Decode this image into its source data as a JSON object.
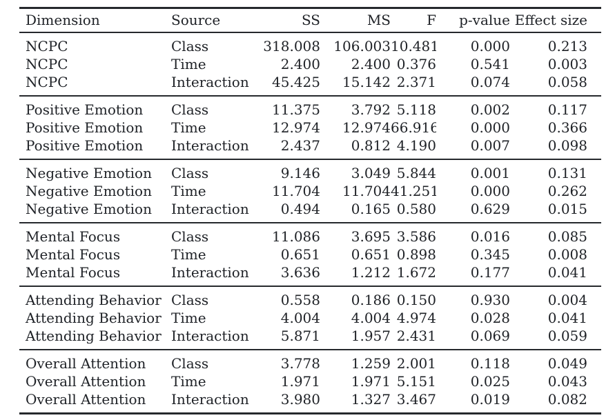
{
  "page": {
    "kind": "paper-table",
    "description": "Repeated-measures ANOVA results table (LaTeX booktabs style)"
  },
  "colors": {
    "background": "#ffffff",
    "text": "#1e2126",
    "rule": "#25282c"
  },
  "table": {
    "columns": [
      {
        "key": "dimension",
        "label": "Dimension",
        "align": "left"
      },
      {
        "key": "source",
        "label": "Source",
        "align": "left"
      },
      {
        "key": "ss",
        "label": "SS",
        "align": "right"
      },
      {
        "key": "ms",
        "label": "MS",
        "align": "right"
      },
      {
        "key": "f",
        "label": "F",
        "align": "right"
      },
      {
        "key": "p_value",
        "label": "p-value",
        "align": "right"
      },
      {
        "key": "effect_size",
        "label": "Effect size",
        "align": "right"
      }
    ],
    "groups": [
      {
        "dimension": "NCPC",
        "rows": [
          [
            "NCPC",
            "Class",
            "318.008",
            "106.003",
            "10.481",
            "0.000",
            "0.213"
          ],
          [
            "NCPC",
            "Time",
            "2.400",
            "2.400",
            "0.376",
            "0.541",
            "0.003"
          ],
          [
            "NCPC",
            "Interaction",
            "45.425",
            "15.142",
            "2.371",
            "0.074",
            "0.058"
          ]
        ]
      },
      {
        "dimension": "Positive Emotion",
        "rows": [
          [
            "Positive Emotion",
            "Class",
            "11.375",
            "3.792",
            "5.118",
            "0.002",
            "0.117"
          ],
          [
            "Positive Emotion",
            "Time",
            "12.974",
            "12.974",
            "66.916",
            "0.000",
            "0.366"
          ],
          [
            "Positive Emotion",
            "Interaction",
            "2.437",
            "0.812",
            "4.190",
            "0.007",
            "0.098"
          ]
        ]
      },
      {
        "dimension": "Negative Emotion",
        "rows": [
          [
            "Negative Emotion",
            "Class",
            "9.146",
            "3.049",
            "5.844",
            "0.001",
            "0.131"
          ],
          [
            "Negative Emotion",
            "Time",
            "11.704",
            "11.704",
            "41.251",
            "0.000",
            "0.262"
          ],
          [
            "Negative Emotion",
            "Interaction",
            "0.494",
            "0.165",
            "0.580",
            "0.629",
            "0.015"
          ]
        ]
      },
      {
        "dimension": "Mental Focus",
        "rows": [
          [
            "Mental Focus",
            "Class",
            "11.086",
            "3.695",
            "3.586",
            "0.016",
            "0.085"
          ],
          [
            "Mental Focus",
            "Time",
            "0.651",
            "0.651",
            "0.898",
            "0.345",
            "0.008"
          ],
          [
            "Mental Focus",
            "Interaction",
            "3.636",
            "1.212",
            "1.672",
            "0.177",
            "0.041"
          ]
        ]
      },
      {
        "dimension": "Attending Behavior",
        "rows": [
          [
            "Attending Behavior",
            "Class",
            "0.558",
            "0.186",
            "0.150",
            "0.930",
            "0.004"
          ],
          [
            "Attending Behavior",
            "Time",
            "4.004",
            "4.004",
            "4.974",
            "0.028",
            "0.041"
          ],
          [
            "Attending Behavior",
            "Interaction",
            "5.871",
            "1.957",
            "2.431",
            "0.069",
            "0.059"
          ]
        ]
      },
      {
        "dimension": "Overall Attention",
        "rows": [
          [
            "Overall Attention",
            "Class",
            "3.778",
            "1.259",
            "2.001",
            "0.118",
            "0.049"
          ],
          [
            "Overall Attention",
            "Time",
            "1.971",
            "1.971",
            "5.151",
            "0.025",
            "0.043"
          ],
          [
            "Overall Attention",
            "Interaction",
            "3.980",
            "1.327",
            "3.467",
            "0.019",
            "0.082"
          ]
        ]
      }
    ]
  }
}
